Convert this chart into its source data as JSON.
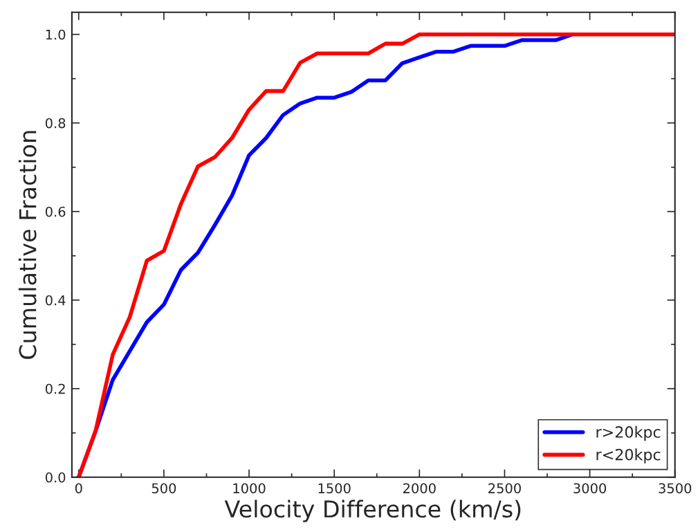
{
  "chart_data": {
    "type": "line",
    "xlabel": "Velocity Difference (km/s)",
    "ylabel": "Cumulative Fraction",
    "x": [
      0,
      100,
      200,
      300,
      400,
      500,
      600,
      700,
      800,
      900,
      1000,
      1100,
      1200,
      1300,
      1400,
      1500,
      1600,
      1700,
      1800,
      1900,
      2000,
      2100,
      2200,
      2300,
      2400,
      2500,
      2600,
      2700,
      2800,
      2900,
      3000,
      3100,
      3200,
      3300,
      3400,
      3500
    ],
    "series": [
      {
        "name": "r>20kpc",
        "color": "#0000ff",
        "values": [
          0,
          0.105,
          0.22,
          0.285,
          0.35,
          0.39,
          0.468,
          0.507,
          0.57,
          0.636,
          0.727,
          0.766,
          0.818,
          0.844,
          0.857,
          0.857,
          0.87,
          0.896,
          0.896,
          0.935,
          0.948,
          0.961,
          0.961,
          0.974,
          0.974,
          0.974,
          0.987,
          0.987,
          0.987,
          1.0,
          null,
          null,
          null,
          null,
          null,
          null
        ]
      },
      {
        "name": "r<20kpc",
        "color": "#ff0000",
        "values": [
          0,
          0.106,
          0.277,
          0.362,
          0.489,
          0.511,
          0.617,
          0.702,
          0.723,
          0.766,
          0.83,
          0.872,
          0.872,
          0.936,
          0.957,
          0.957,
          0.957,
          0.957,
          0.979,
          0.979,
          1.0,
          1.0,
          1.0,
          1.0,
          1.0,
          1.0,
          1.0,
          1.0,
          1.0,
          1.0,
          1.0,
          1.0,
          1.0,
          1.0,
          1.0,
          1.0
        ]
      }
    ],
    "xlim": [
      -40,
      3500
    ],
    "ylim": [
      0,
      1.05
    ],
    "xticks": [
      0,
      {
        "value": 250,
        "label": null
      },
      500,
      {
        "value": 750,
        "label": null
      },
      1000,
      {
        "value": 1250,
        "label": null
      },
      1500,
      {
        "value": 1750,
        "label": null
      },
      2000,
      {
        "value": 2250,
        "label": null
      },
      2500,
      {
        "value": 2750,
        "label": null
      },
      3000,
      {
        "value": 3250,
        "label": null
      },
      3500
    ],
    "yticks": [
      {
        "value": 0,
        "label": "0.0"
      },
      {
        "value": 0.1,
        "label": null
      },
      {
        "value": 0.2,
        "label": "0.2"
      },
      {
        "value": 0.3,
        "label": null
      },
      {
        "value": 0.4,
        "label": "0.4"
      },
      {
        "value": 0.5,
        "label": null
      },
      {
        "value": 0.6,
        "label": "0.6"
      },
      {
        "value": 0.7,
        "label": null
      },
      {
        "value": 0.8,
        "label": "0.8"
      },
      {
        "value": 0.9,
        "label": null
      },
      {
        "value": 1.0,
        "label": "1.0"
      }
    ],
    "grid": false,
    "legend": "bottom right",
    "marker": "none",
    "line_style": "solid"
  }
}
